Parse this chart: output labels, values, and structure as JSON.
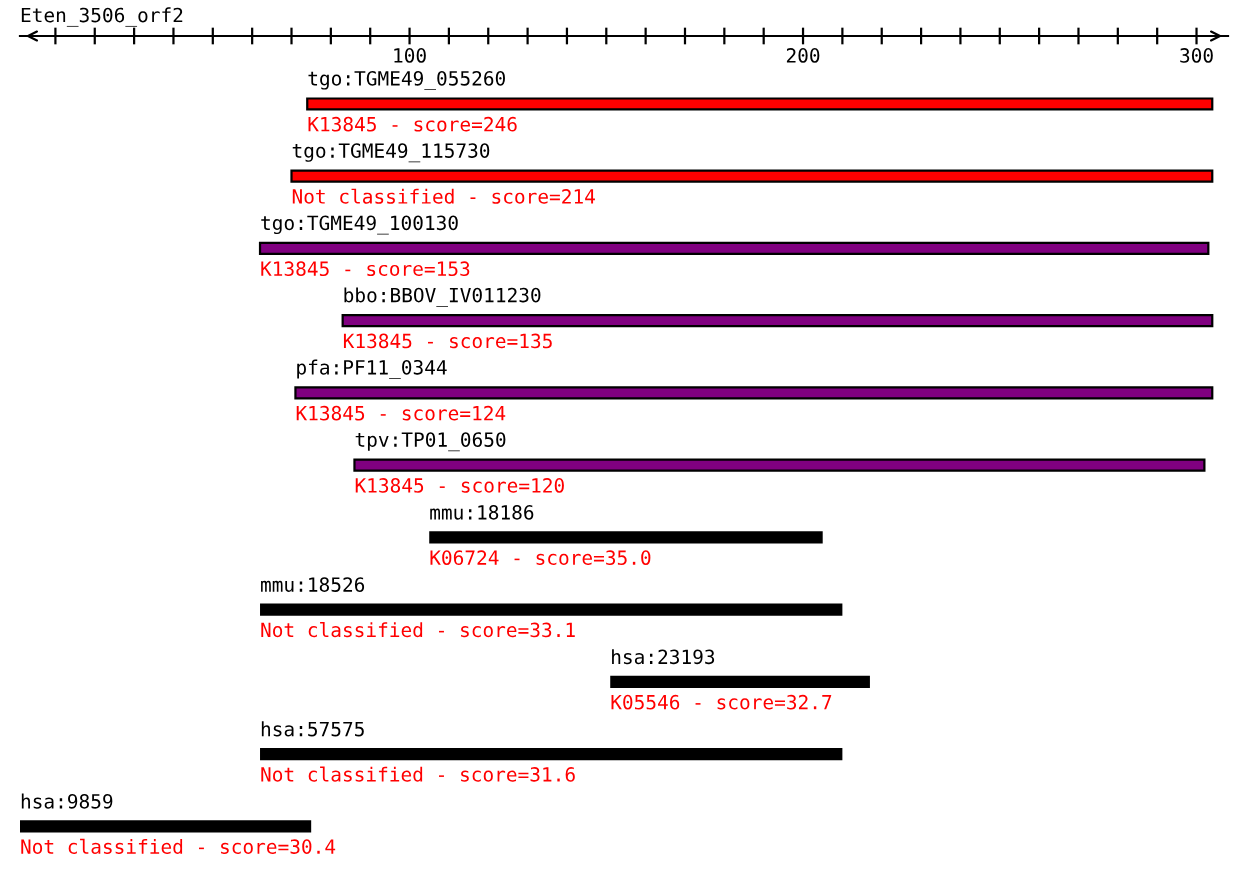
{
  "chart_data": {
    "type": "bar",
    "orientation": "horizontal",
    "title": "Eten_3506_orf2",
    "categories": [
      "tgo:TGME49_055260",
      "tgo:TGME49_115730",
      "tgo:TGME49_100130",
      "bbo:BBOV_IV011230",
      "pfa:PF11_0344",
      "tpv:TP01_0650",
      "mmu:18186",
      "mmu:18526",
      "hsa:23193",
      "hsa:57575",
      "hsa:9859"
    ],
    "base": [
      74,
      70,
      62,
      83,
      71,
      86,
      105,
      62,
      151,
      62,
      1
    ],
    "values": [
      230,
      234,
      241,
      221,
      233,
      216,
      100,
      148,
      66,
      148,
      74
    ],
    "colors": [
      "#ff0000",
      "#ff0000",
      "#800080",
      "#800080",
      "#800080",
      "#800080",
      "#000000",
      "#000000",
      "#000000",
      "#000000",
      "#000000"
    ],
    "annotations": [
      "K13845 - score=246",
      "Not classified - score=214",
      "K13845 - score=153",
      "K13845 - score=135",
      "K13845 - score=124",
      "K13845 - score=120",
      "K06724 - score=35.0",
      "Not classified - score=33.1",
      "K05546 - score=32.7",
      "Not classified - score=31.6",
      "Not classified - score=30.4"
    ],
    "xlim": [
      1,
      308
    ],
    "xticks": [
      {
        "value": 10,
        "label": null
      },
      {
        "value": 20,
        "label": null
      },
      {
        "value": 30,
        "label": null
      },
      {
        "value": 40,
        "label": null
      },
      {
        "value": 50,
        "label": null
      },
      {
        "value": 60,
        "label": null
      },
      {
        "value": 70,
        "label": null
      },
      {
        "value": 80,
        "label": null
      },
      {
        "value": 90,
        "label": null
      },
      100,
      {
        "value": 110,
        "label": null
      },
      {
        "value": 120,
        "label": null
      },
      {
        "value": 130,
        "label": null
      },
      {
        "value": 140,
        "label": null
      },
      {
        "value": 150,
        "label": null
      },
      {
        "value": 160,
        "label": null
      },
      {
        "value": 170,
        "label": null
      },
      {
        "value": 180,
        "label": null
      },
      {
        "value": 190,
        "label": null
      },
      200,
      {
        "value": 210,
        "label": null
      },
      {
        "value": 220,
        "label": null
      },
      {
        "value": 230,
        "label": null
      },
      {
        "value": 240,
        "label": null
      },
      {
        "value": 250,
        "label": null
      },
      {
        "value": 260,
        "label": null
      },
      {
        "value": 270,
        "label": null
      },
      {
        "value": 280,
        "label": null
      },
      {
        "value": 290,
        "label": null
      },
      300
    ],
    "tick_labels": "x"
  }
}
